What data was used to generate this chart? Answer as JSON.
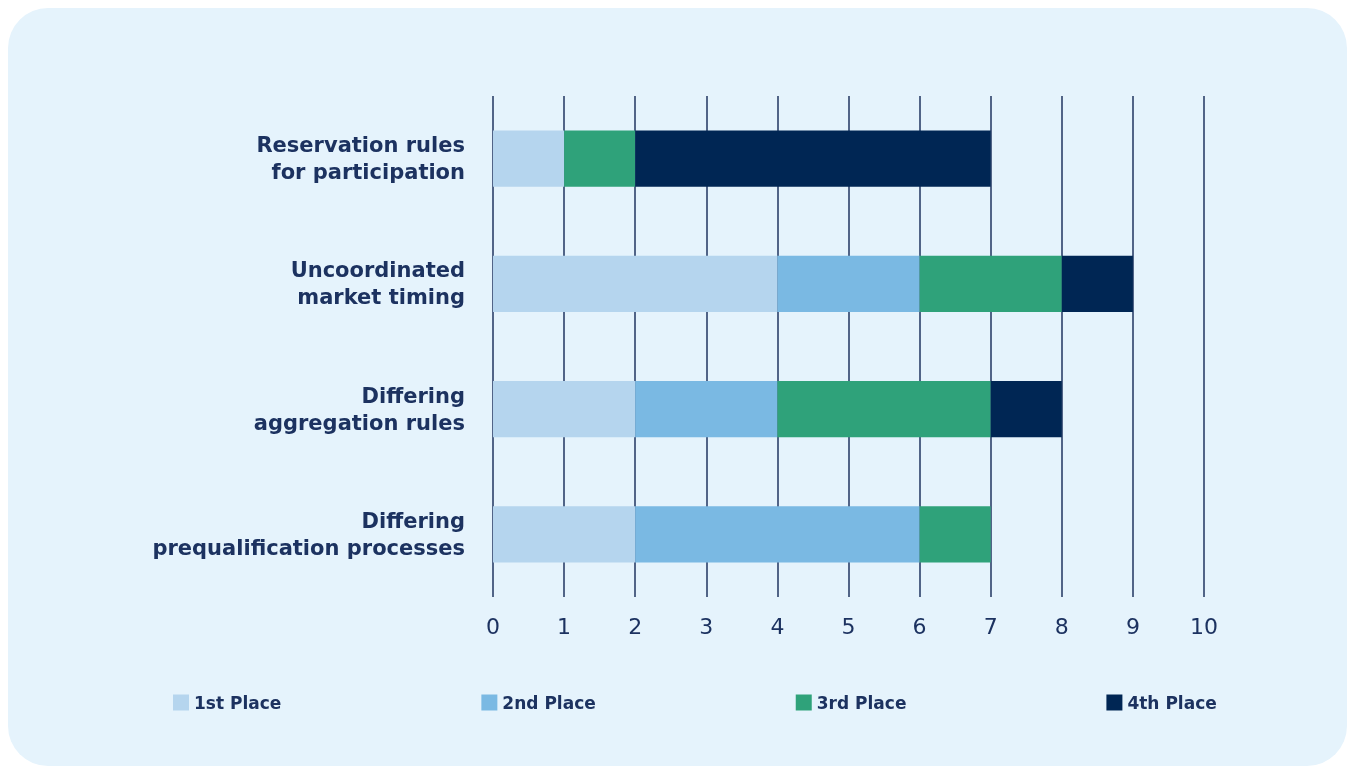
{
  "chart_data": {
    "type": "bar",
    "orientation": "horizontal",
    "stacked": true,
    "categories": [
      "Reservation rules\nfor participation",
      "Uncoordinated\nmarket timing",
      "Differing\naggregation rules",
      "Differing\nprequalification processes"
    ],
    "series": [
      {
        "name": "1st Place",
        "color": "#b5d5ee",
        "values": [
          1,
          4,
          2,
          2
        ]
      },
      {
        "name": "2nd Place",
        "color": "#7ab9e3",
        "values": [
          0,
          2,
          2,
          4
        ]
      },
      {
        "name": "3rd Place",
        "color": "#2fa27a",
        "values": [
          1,
          2,
          3,
          1
        ]
      },
      {
        "name": "4th Place",
        "color": "#002654",
        "values": [
          5,
          1,
          1,
          0
        ]
      }
    ],
    "xlim": [
      0,
      10
    ],
    "xticks": [
      0,
      1,
      2,
      3,
      4,
      5,
      6,
      7,
      8,
      9,
      10
    ],
    "grid": "x",
    "legend": "bottom"
  }
}
